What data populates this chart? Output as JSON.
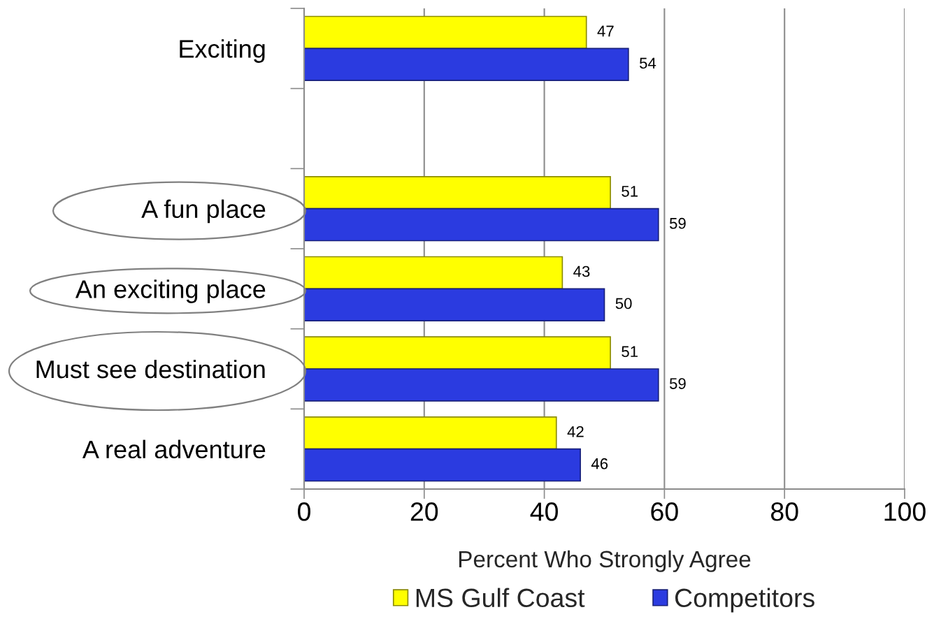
{
  "chart_data": {
    "type": "bar",
    "orientation": "horizontal",
    "categories": [
      "Exciting",
      null,
      "A fun place",
      "An exciting place",
      "Must see destination",
      "A real adventure"
    ],
    "series": [
      {
        "name": "MS Gulf Coast",
        "color": "#ffff00",
        "values": [
          47,
          null,
          51,
          43,
          51,
          42
        ]
      },
      {
        "name": "Competitors",
        "color": "#2b3be0",
        "values": [
          54,
          null,
          59,
          50,
          59,
          46
        ]
      }
    ],
    "xlabel": "Percent Who Strongly Agree",
    "xlim": [
      0,
      100
    ],
    "xticks": [
      0,
      20,
      40,
      60,
      80,
      100
    ],
    "grid": "x",
    "legend": "bottom",
    "data_labels": true
  }
}
